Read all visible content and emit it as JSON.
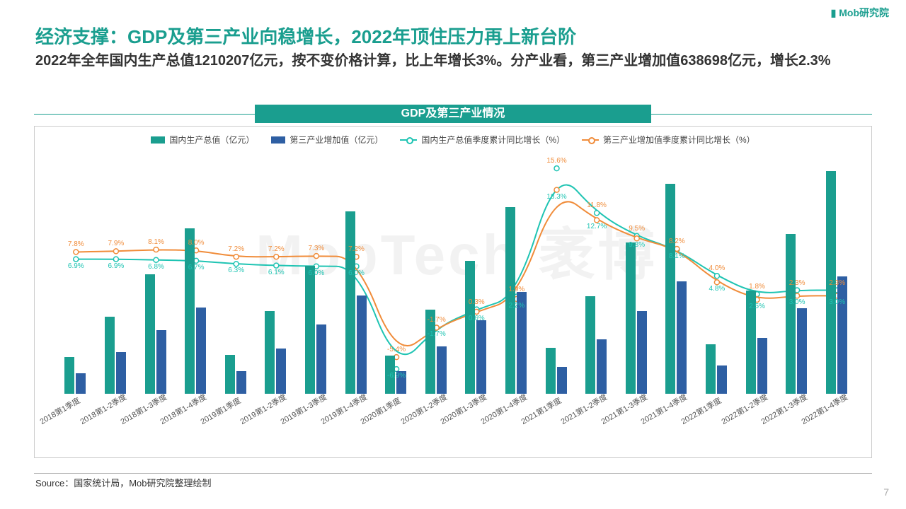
{
  "logo_text": "Mob研究院",
  "title": "经济支撑：GDP及第三产业向稳增长，2022年顶住压力再上新台阶",
  "subtitle": "2022年全年国内生产总值1210207亿元，按不变价格计算，比上年增长3%。分产业看，第三产业增加值638698亿元，增长2.3%",
  "chart_title": "GDP及第三产业情况",
  "watermark": "MobTech 袤博",
  "source": "Source：国家统计局，Mob研究院整理绘制",
  "page_number": "7",
  "legend": {
    "bar1": "国内生产总值（亿元）",
    "bar2": "第三产业增加值（亿元）",
    "line1": "国内生产总值季度累计同比增长（%）",
    "line2": "第三产业增加值季度累计同比增长（%）"
  },
  "colors": {
    "bar1": "#1a9e8f",
    "bar2": "#2e5fa3",
    "line1": "#1fc4b3",
    "line2": "#f08c3a",
    "title": "#1a9e8f",
    "text": "#333333",
    "label_gdp": "#1fc4b3",
    "label_tertiary": "#f08c3a"
  },
  "chart": {
    "type": "bar+line",
    "categories": [
      "2018第1季度",
      "2018第1-2季度",
      "2018第1-3季度",
      "2018第1-4季度",
      "2019第1季度",
      "2019第1-2季度",
      "2019第1-3季度",
      "2019第1-4季度",
      "2020第1季度",
      "2020第1-2季度",
      "2020第1-3季度",
      "2020第1-4季度",
      "2021第1季度",
      "2021第1-2季度",
      "2021第1-3季度",
      "2021第1-4季度",
      "2022第1季度",
      "2022第1-2季度",
      "2022第1-3季度",
      "2022第1-4季度"
    ],
    "gdp_bar": [
      198783,
      418961,
      650899,
      900309,
      213433,
      450933,
      697798,
      990865,
      206504,
      456614,
      722786,
      1015986,
      249310,
      532167,
      823131,
      1143670,
      270178,
      562642,
      870269,
      1210207
    ],
    "tertiary_bar": [
      112428,
      227576,
      345773,
      469575,
      122317,
      247743,
      377490,
      534233,
      122680,
      257802,
      400397,
      553977,
      145355,
      296611,
      450761,
      609680,
      153037,
      305244,
      465300,
      638698
    ],
    "gdp_growth": [
      6.9,
      6.9,
      6.8,
      6.7,
      6.3,
      6.1,
      6.0,
      6.0,
      -6.9,
      -1.7,
      0.6,
      2.2,
      18.3,
      12.7,
      9.8,
      8.1,
      4.8,
      2.5,
      3.0,
      3.0
    ],
    "tertiary_growth": [
      7.8,
      7.9,
      8.1,
      8.0,
      7.2,
      7.2,
      7.3,
      7.2,
      -5.4,
      -1.7,
      0.3,
      1.9,
      15.6,
      11.8,
      9.5,
      8.2,
      4.0,
      1.8,
      2.3,
      2.3
    ],
    "bar_ylim": [
      0,
      1300000
    ],
    "line_ylim": [
      -10,
      20
    ],
    "gdp_label_fmt": [
      "6.9%",
      "6.9%",
      "6.8%",
      "6.7%",
      "6.3%",
      "6.1%",
      "6.0%",
      "6.0%",
      "-6.9%",
      "-1.7%",
      "0.6%",
      "2.2%",
      "18.3%",
      "12.7%",
      "9.8%",
      "8.1%",
      "4.8%",
      "2.5%",
      "3.0%",
      "3.0%"
    ],
    "tertiary_label_fmt": [
      "7.8%",
      "7.9%",
      "8.1%",
      "8.0%",
      "7.2%",
      "7.2%",
      "7.3%",
      "7.2%",
      "-5.4%",
      "-1.7%",
      "0.3%",
      "1.9%",
      "15.6%",
      "11.8%",
      "9.5%",
      "8.2%",
      "4.0%",
      "1.8%",
      "2.3%",
      "2.3%"
    ]
  }
}
